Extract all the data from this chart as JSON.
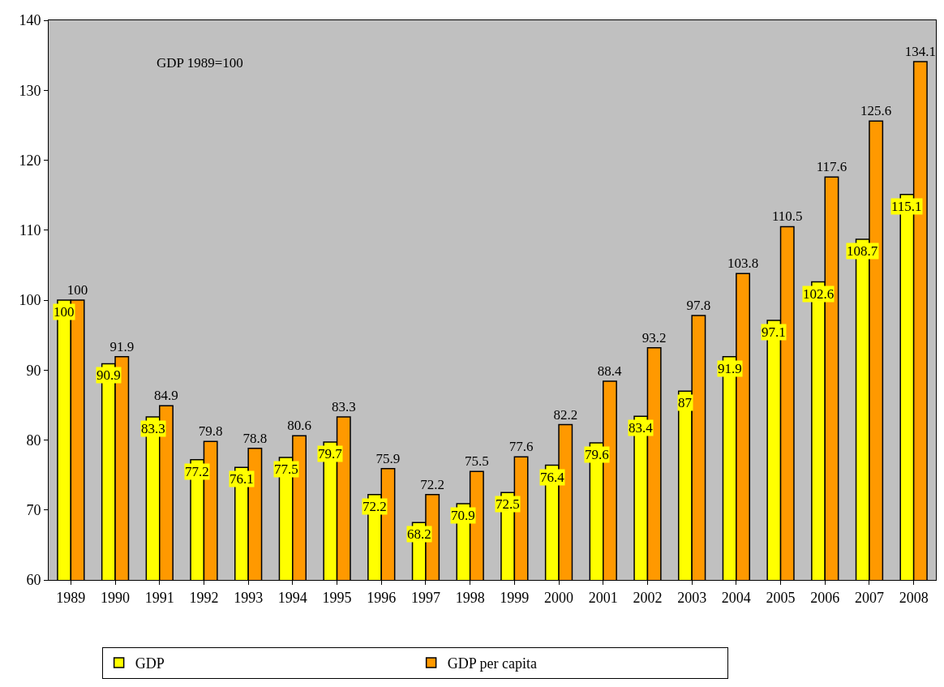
{
  "chart_data": {
    "type": "bar",
    "categories": [
      "1989",
      "1990",
      "1991",
      "1992",
      "1993",
      "1994",
      "1995",
      "1996",
      "1997",
      "1998",
      "1999",
      "2000",
      "2001",
      "2002",
      "2003",
      "2004",
      "2005",
      "2006",
      "2007",
      "2008"
    ],
    "series": [
      {
        "name": "GDP",
        "color": "#ffff00",
        "values": [
          100,
          90.9,
          83.3,
          77.2,
          76.1,
          77.5,
          79.7,
          72.2,
          68.2,
          70.9,
          72.5,
          76.4,
          79.6,
          83.4,
          87,
          91.9,
          97.1,
          102.6,
          108.7,
          115.1
        ]
      },
      {
        "name": "GDP per capita",
        "color": "#ff9900",
        "values": [
          100,
          91.9,
          84.9,
          79.8,
          78.8,
          80.6,
          83.3,
          75.9,
          72.2,
          75.5,
          77.6,
          82.2,
          88.4,
          93.2,
          97.8,
          103.8,
          110.5,
          117.6,
          125.6,
          134.1
        ]
      }
    ],
    "ylim": [
      60,
      140
    ],
    "yticks": [
      60,
      70,
      80,
      90,
      100,
      110,
      120,
      130,
      140
    ],
    "annotations": [
      "GDP 1989=100"
    ],
    "data_labels": true,
    "grid": false,
    "legend": "bottom"
  }
}
